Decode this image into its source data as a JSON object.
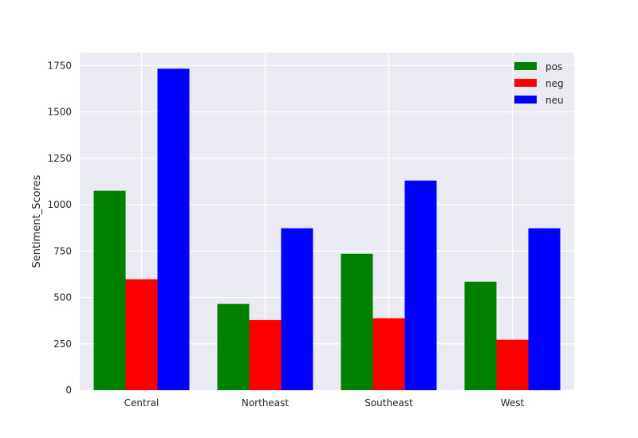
{
  "chart_data": {
    "type": "bar",
    "title": "",
    "xlabel": "",
    "ylabel": "Sentiment_Scores",
    "categories": [
      "Central",
      "Northeast",
      "Southeast",
      "West"
    ],
    "series": [
      {
        "name": "pos",
        "color": "#008000",
        "values": [
          1075,
          465,
          735,
          585
        ]
      },
      {
        "name": "neg",
        "color": "#ff0000",
        "values": [
          598,
          378,
          388,
          272
        ]
      },
      {
        "name": "neu",
        "color": "#0000ff",
        "values": [
          1733,
          873,
          1130,
          873
        ]
      }
    ],
    "ylim": [
      0,
      1820
    ],
    "yticks": [
      0,
      250,
      500,
      750,
      1000,
      1250,
      1500,
      1750
    ],
    "grid": true,
    "legend_position": "top-right"
  }
}
